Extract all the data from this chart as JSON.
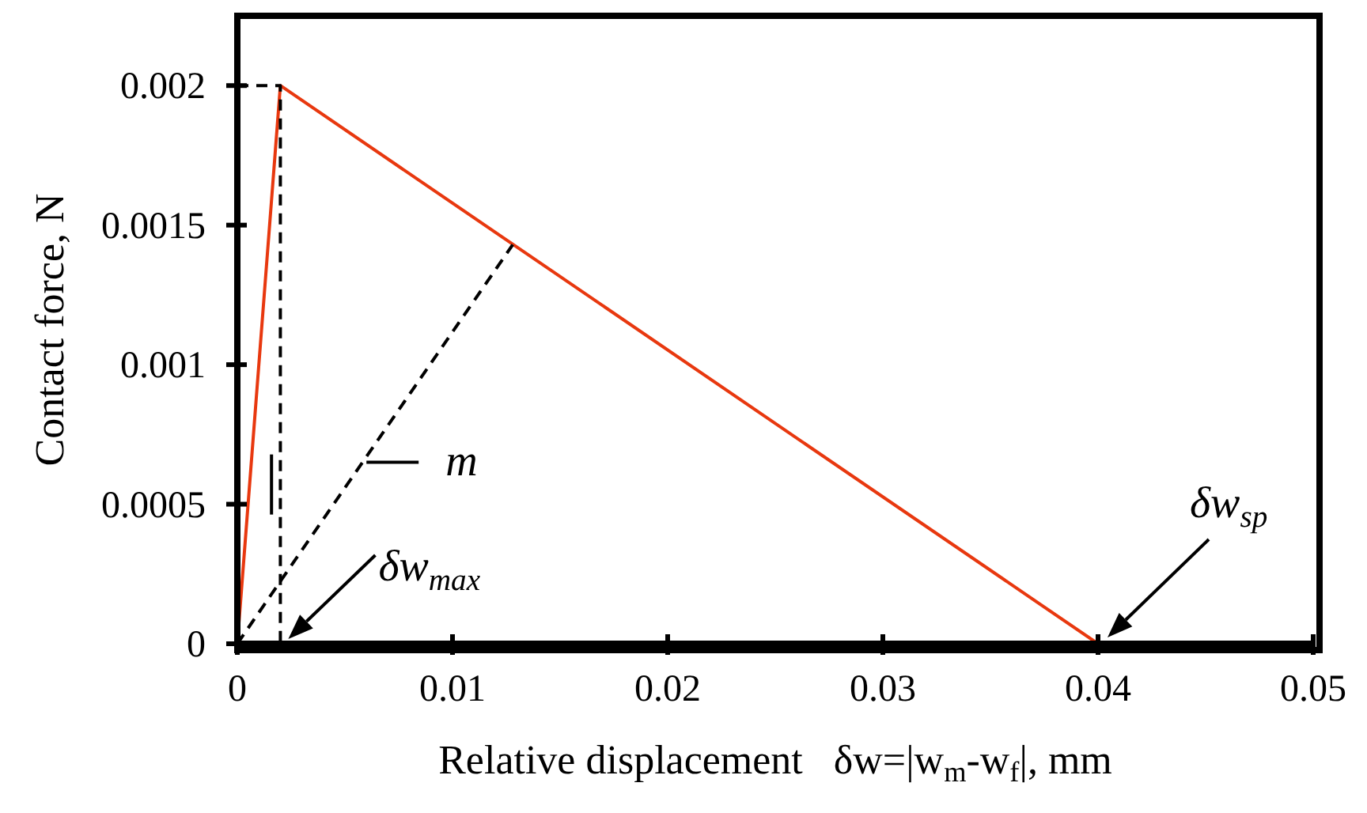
{
  "chart_data": {
    "type": "line",
    "xlabel": "Relative displacement   δw=|w$_{m}$-w$_{f}$|, mm",
    "ylabel": "Contact force, N",
    "xlim": [
      0,
      0.05
    ],
    "xticks": [
      0,
      0.01,
      0.02,
      0.03,
      0.04,
      0.05
    ],
    "ylim": [
      0,
      0.00225
    ],
    "yticks": [
      0,
      0.0005,
      0.001,
      0.0015,
      0.002
    ],
    "marker": "none",
    "series": [
      {
        "color": "#e8380f",
        "x": [
          0,
          0.002,
          0.04,
          0.05
        ],
        "values": [
          0,
          0.002,
          0,
          0
        ],
        "line_style": "solid"
      },
      {
        "color": "#000000",
        "x": [
          0,
          0.0128
        ],
        "values": [
          0,
          0.00143
        ],
        "line_style": "dashed"
      },
      {
        "color": "#000000",
        "x": [
          0,
          0.002,
          0.002
        ],
        "values": [
          0.002,
          0.002,
          0
        ],
        "line_style": "dashed"
      }
    ],
    "annotations": [
      {
        "text": "m",
        "x": 0.006,
        "y": 0.00065
      },
      {
        "text": "δw$_{max}$",
        "x": 0.002,
        "y": 0
      },
      "δw$_{sp}$"
    ]
  }
}
